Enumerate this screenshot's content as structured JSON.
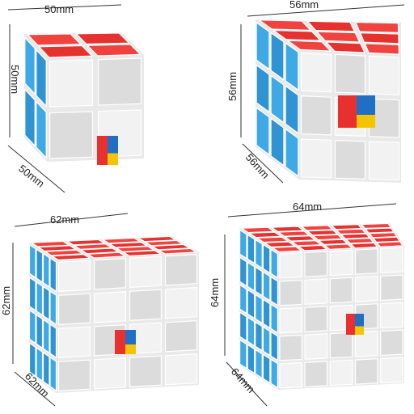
{
  "colors": {
    "background": "#ffffff",
    "top_face": "#f0433f",
    "top_face_shade": "#e6322f",
    "left_face": "#3fa9e6",
    "left_face_shade": "#2f93d4",
    "front_face": "#f2f2f2",
    "front_face_shade": "#dcdcdc",
    "logo_red": "#e8312e",
    "logo_blue": "#1f6fc4",
    "logo_yellow": "#f5c400"
  },
  "cubes": [
    {
      "name": "cube-2x2",
      "order": 2,
      "dim_top": "50mm",
      "dim_side": "50mm",
      "dim_depth": "50mm"
    },
    {
      "name": "cube-3x3",
      "order": 3,
      "dim_top": "56mm",
      "dim_side": "56mm",
      "dim_depth": "56mm"
    },
    {
      "name": "cube-4x4",
      "order": 4,
      "dim_top": "62mm",
      "dim_side": "62mm",
      "dim_depth": "62mm"
    },
    {
      "name": "cube-5x5",
      "order": 5,
      "dim_top": "64mm",
      "dim_side": "64mm",
      "dim_depth": "64mm"
    }
  ]
}
